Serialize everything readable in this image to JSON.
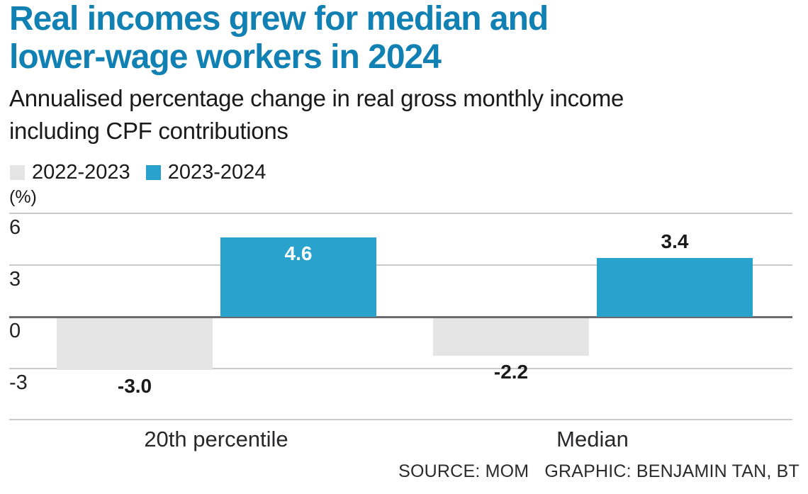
{
  "header": {
    "title_lines": [
      "Real incomes grew for median and",
      "lower-wage workers in 2024"
    ],
    "subtitle_lines": [
      "Annualised percentage change in real gross monthly income",
      "including CPF contributions"
    ]
  },
  "chart_data": {
    "type": "bar",
    "title": "Real incomes grew for median and lower-wage workers in 2024",
    "subtitle": "Annualised percentage change in real gross monthly income including CPF contributions",
    "unit_label": "(%)",
    "categories": [
      "20th percentile",
      "Median"
    ],
    "series": [
      {
        "name": "2022-2023",
        "color": "#e5e5e6",
        "values": [
          -3.0,
          -2.2
        ],
        "labels": [
          "-3.0",
          "-2.2"
        ],
        "label_placement": [
          "below",
          "below"
        ],
        "label_colors": [
          "#1a1a1a",
          "#1a1a1a"
        ]
      },
      {
        "name": "2023-2024",
        "color": "#29a3cd",
        "values": [
          4.6,
          3.4
        ],
        "labels": [
          "4.6",
          "3.4"
        ],
        "label_placement": [
          "inside",
          "above"
        ],
        "label_colors": [
          "#ffffff",
          "#1a1a1a"
        ]
      }
    ],
    "yticks": [
      {
        "label": "6",
        "value": 6
      },
      {
        "label": "3",
        "value": 3
      },
      {
        "label": "0",
        "value": 0
      },
      {
        "label": "-3",
        "value": -3
      }
    ],
    "ylim": [
      -6,
      6
    ],
    "grid": true,
    "legend_position": "top-left"
  },
  "footer": {
    "source_label": "SOURCE: MOM",
    "credit_label": "GRAPHIC: BENJAMIN TAN, BT"
  },
  "colors": {
    "title_blue": "#1181b3",
    "bar_blue": "#29a3cd",
    "bar_gray": "#e5e5e6",
    "grid_line": "#c9cacb",
    "zero_line": "#6a6a6c",
    "text": "#1a1a1a"
  }
}
